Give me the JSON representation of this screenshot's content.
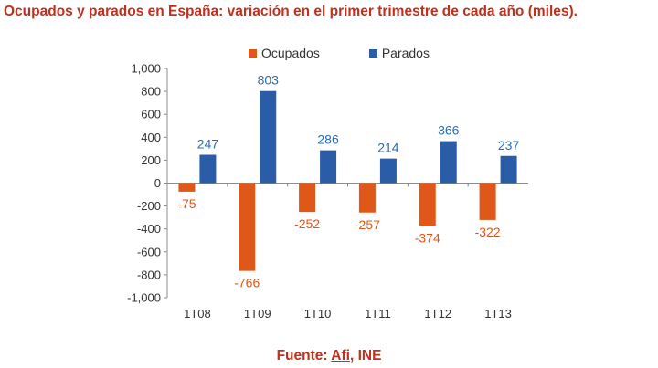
{
  "chart_data": {
    "type": "bar",
    "title": "Ocupados y parados en España: variación en el primer trimestre de cada año (miles).",
    "categories": [
      "1T08",
      "1T09",
      "1T10",
      "1T11",
      "1T12",
      "1T13"
    ],
    "series": [
      {
        "name": "Ocupados",
        "values": [
          -75,
          -766,
          -252,
          -257,
          -374,
          -322
        ],
        "color": "#e0571a",
        "label_color": "#e0571a"
      },
      {
        "name": "Parados",
        "values": [
          247,
          803,
          286,
          214,
          366,
          237
        ],
        "color": "#2a5ca8",
        "label_color": "#2a6db3"
      }
    ],
    "yticks": [
      "1,000",
      "800",
      "600",
      "400",
      "200",
      "0",
      "-200",
      "-400",
      "-600",
      "-800",
      "-1,000"
    ],
    "ylim": [
      -1000,
      1000
    ],
    "xlabel": "",
    "ylabel": "",
    "grid": false,
    "legend_position": "top"
  },
  "source": {
    "prefix": "Fuente:",
    "link": "Afi",
    "suffix": ", INE"
  }
}
